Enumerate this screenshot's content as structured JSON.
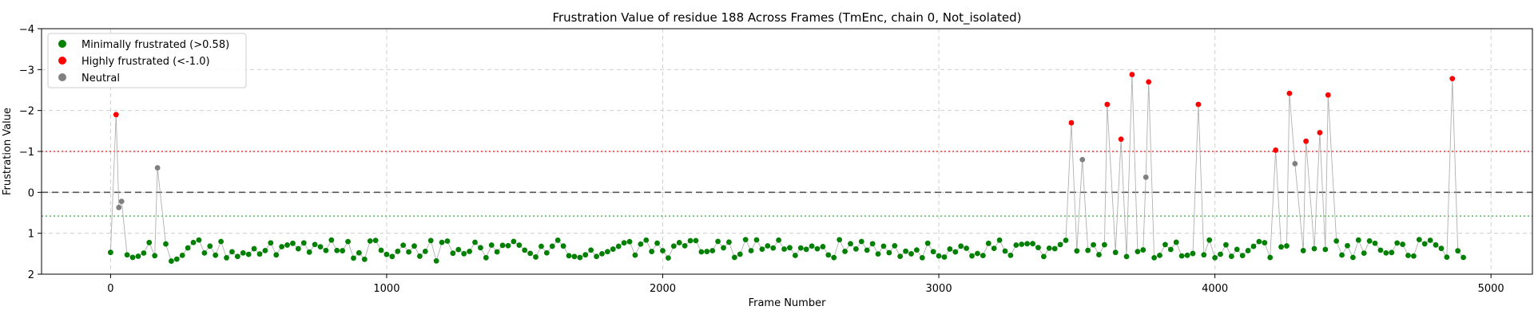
{
  "chart_data": {
    "type": "scatter",
    "title": "Frustration Value of residue 188 Across Frames (TmEnc, chain 0, Not_isolated)",
    "xlabel": "Frame Number",
    "ylabel": "Frustration Value",
    "xlim": [
      -250,
      5150
    ],
    "ylim": [
      2,
      -4
    ],
    "y_inverted": true,
    "x_ticks": [
      0,
      1000,
      2000,
      3000,
      4000,
      5000
    ],
    "x_tick_labels": [
      "0",
      "1000",
      "2000",
      "3000",
      "4000",
      "5000"
    ],
    "y_ticks": [
      -4,
      -3,
      -2,
      -1,
      0,
      1,
      2
    ],
    "y_tick_labels": [
      "−4",
      "−3",
      "−2",
      "−1",
      "0",
      "1",
      "2"
    ],
    "grid": true,
    "legend_position": "top-left",
    "reference_lines": [
      {
        "y": 0,
        "style": "dashed",
        "color": "#555555"
      },
      {
        "y": -1.0,
        "style": "dotted",
        "color": "#e8393b"
      },
      {
        "y": 0.58,
        "style": "dotted",
        "color": "#4caf50"
      }
    ],
    "series": [
      {
        "name": "Minimally frustrated (>0.58)",
        "color": "#008000",
        "description": "dense band of about 250 frames between 1.1 and 1.7, sampled every ~20 frames from 0 to 4900",
        "points": []
      },
      {
        "name": "Highly frustrated (<-1.0)",
        "color": "#ff0000",
        "points": [
          [
            20,
            -1.9
          ],
          [
            3480,
            -1.7
          ],
          [
            3610,
            -2.15
          ],
          [
            3660,
            -1.3
          ],
          [
            3700,
            -2.88
          ],
          [
            3760,
            -2.7
          ],
          [
            3940,
            -2.15
          ],
          [
            4220,
            -1.03
          ],
          [
            4270,
            -2.42
          ],
          [
            4330,
            -1.25
          ],
          [
            4380,
            -1.46
          ],
          [
            4410,
            -2.38
          ],
          [
            4860,
            -2.78
          ]
        ]
      },
      {
        "name": "Neutral",
        "color": "#808080",
        "points": [
          [
            30,
            0.37
          ],
          [
            40,
            0.22
          ],
          [
            170,
            -0.6
          ],
          [
            3520,
            -0.8
          ],
          [
            3750,
            -0.37
          ],
          [
            4290,
            -0.7
          ]
        ]
      }
    ],
    "connector_line_color": "#b0b0b0"
  }
}
